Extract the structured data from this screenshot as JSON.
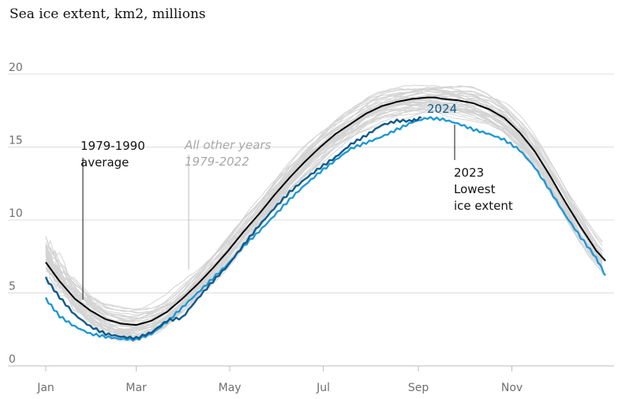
{
  "title": "Sea ice extent, km2, millions",
  "colors": {
    "other_years": "#d4d4d4",
    "average": "#000000",
    "year_2024": "#0e5a8a",
    "year_2023": "#1f98d3",
    "grid": "#dcdcdc"
  },
  "chart_data": {
    "type": "line",
    "title": "Sea ice extent, km2, millions",
    "xlabel": "",
    "ylabel": "",
    "ylim": [
      0,
      20
    ],
    "yticks": [
      {
        "value": 0,
        "label": "0"
      },
      {
        "value": 5,
        "label": "5"
      },
      {
        "value": 10,
        "label": "10"
      },
      {
        "value": 15,
        "label": "15"
      },
      {
        "value": 20,
        "label": "20"
      }
    ],
    "xlim": [
      1,
      366
    ],
    "xticks": [
      {
        "value": 1,
        "label": "Jan"
      },
      {
        "value": 60,
        "label": "Mar"
      },
      {
        "value": 121,
        "label": "May"
      },
      {
        "value": 182,
        "label": "Jul"
      },
      {
        "value": 244,
        "label": "Sep"
      },
      {
        "value": 305,
        "label": "Nov"
      }
    ],
    "x_unit": "day of year",
    "grid": "horizontal",
    "legend": "none",
    "background_years_range": "1979-2022",
    "background_years_count": 44,
    "series": [
      {
        "name": "1979-1990 average",
        "x": [
          1,
          10,
          20,
          30,
          40,
          50,
          60,
          70,
          80,
          90,
          100,
          110,
          120,
          130,
          140,
          150,
          160,
          170,
          180,
          190,
          200,
          210,
          220,
          230,
          240,
          250,
          255,
          260,
          270,
          280,
          290,
          300,
          310,
          320,
          330,
          340,
          350,
          360,
          366
        ],
        "y": [
          7.1,
          5.8,
          4.6,
          3.8,
          3.2,
          2.9,
          2.8,
          3.1,
          3.7,
          4.6,
          5.6,
          6.7,
          7.9,
          9.2,
          10.4,
          11.7,
          12.9,
          14.0,
          15.0,
          15.9,
          16.6,
          17.3,
          17.8,
          18.1,
          18.3,
          18.4,
          18.4,
          18.3,
          18.2,
          18.0,
          17.6,
          17.0,
          16.0,
          14.7,
          13.0,
          11.2,
          9.5,
          7.9,
          7.2
        ]
      },
      {
        "name": "2024",
        "x": [
          1,
          10,
          20,
          30,
          40,
          50,
          60,
          70,
          80,
          90,
          100,
          110,
          120,
          130,
          140,
          150,
          160,
          170,
          180,
          190,
          200,
          210,
          220,
          230,
          240,
          246
        ],
        "y": [
          6.0,
          4.7,
          3.5,
          2.7,
          2.2,
          2.0,
          1.9,
          2.3,
          3.1,
          3.3,
          4.6,
          5.8,
          6.9,
          8.3,
          9.6,
          10.8,
          11.9,
          12.8,
          13.6,
          14.3,
          15.2,
          15.8,
          16.5,
          16.8,
          16.8,
          17.0
        ]
      },
      {
        "name": "2023",
        "label": "2023 Lowest ice extent",
        "x": [
          1,
          10,
          20,
          30,
          40,
          50,
          60,
          70,
          80,
          90,
          100,
          110,
          120,
          130,
          140,
          150,
          160,
          170,
          180,
          190,
          200,
          210,
          220,
          230,
          240,
          250,
          260,
          270,
          280,
          290,
          300,
          310,
          320,
          330,
          340,
          350,
          360,
          366
        ],
        "y": [
          4.6,
          3.4,
          2.7,
          2.2,
          2.0,
          1.85,
          1.8,
          2.2,
          3.0,
          4.0,
          5.0,
          6.0,
          7.0,
          8.2,
          9.2,
          10.3,
          11.4,
          12.4,
          13.3,
          14.1,
          14.9,
          15.3,
          15.7,
          16.2,
          16.7,
          17.0,
          16.9,
          16.6,
          16.2,
          15.9,
          15.5,
          14.8,
          13.6,
          12.0,
          10.3,
          8.8,
          7.4,
          6.2
        ]
      }
    ],
    "annotations": {
      "average_label": [
        "1979-1990",
        "average"
      ],
      "other_years_label": [
        "All other years",
        "1979-2022"
      ],
      "label_2024": "2024",
      "label_2023": [
        "2023",
        "Lowest",
        "ice extent"
      ]
    }
  }
}
